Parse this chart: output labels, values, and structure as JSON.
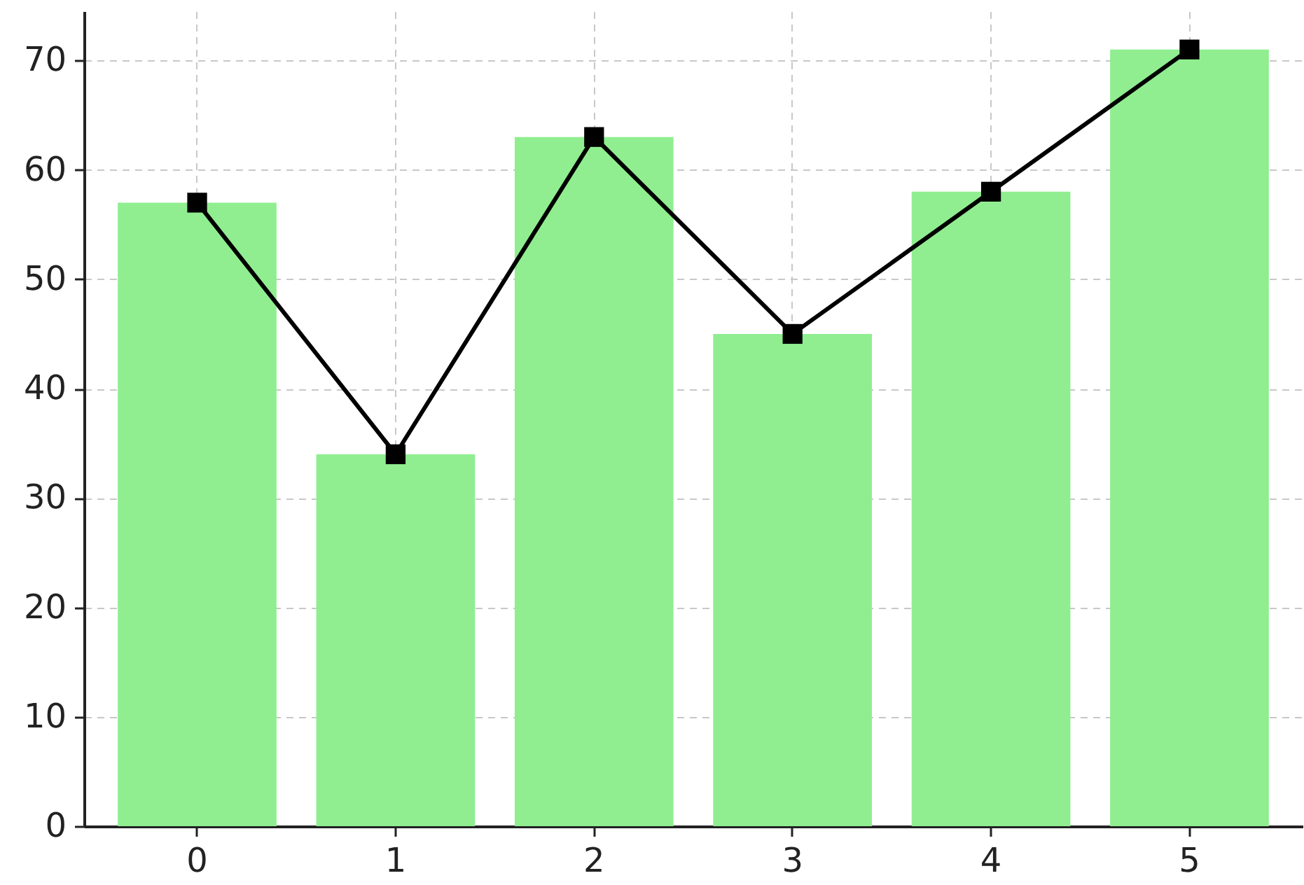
{
  "chart_data": {
    "type": "bar",
    "categories": [
      "0",
      "1",
      "2",
      "3",
      "4",
      "5"
    ],
    "series": [
      {
        "color": "#90ee90",
        "values": [
          57,
          34,
          63,
          45,
          58,
          71
        ]
      },
      {
        "type": "line",
        "color": "#000000",
        "values": [
          57,
          34,
          63,
          45,
          58,
          71
        ]
      }
    ],
    "ylim": [
      0,
      74.5
    ],
    "yticks": [
      0,
      10,
      20,
      30,
      40,
      50,
      60,
      70
    ],
    "grid": true,
    "marker": "square",
    "line_style": "solid"
  }
}
